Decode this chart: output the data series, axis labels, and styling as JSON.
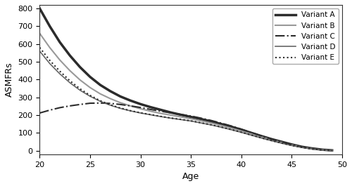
{
  "title": "",
  "xlabel": "Age",
  "ylabel": "ASMFRs",
  "xlim": [
    20,
    49
  ],
  "ylim": [
    -20,
    820
  ],
  "yticks": [
    0,
    100,
    200,
    300,
    400,
    500,
    600,
    700,
    800
  ],
  "xticks": [
    20,
    25,
    30,
    35,
    40,
    45,
    50
  ],
  "ages": [
    20,
    21,
    22,
    23,
    24,
    25,
    26,
    27,
    28,
    29,
    30,
    31,
    32,
    33,
    34,
    35,
    36,
    37,
    38,
    39,
    40,
    41,
    42,
    43,
    44,
    45,
    46,
    47,
    48,
    49
  ],
  "variant_A": [
    800,
    700,
    610,
    535,
    470,
    415,
    370,
    335,
    305,
    282,
    262,
    245,
    230,
    215,
    202,
    190,
    178,
    165,
    150,
    135,
    118,
    100,
    82,
    65,
    50,
    35,
    22,
    13,
    6,
    2
  ],
  "variant_B": [
    660,
    580,
    510,
    450,
    398,
    355,
    320,
    293,
    270,
    252,
    236,
    222,
    210,
    200,
    190,
    180,
    168,
    156,
    142,
    127,
    111,
    94,
    77,
    61,
    46,
    32,
    20,
    11,
    5,
    1
  ],
  "variant_C": [
    212,
    228,
    242,
    252,
    260,
    267,
    268,
    266,
    260,
    252,
    243,
    232,
    222,
    213,
    204,
    195,
    183,
    170,
    155,
    139,
    121,
    102,
    83,
    65,
    49,
    34,
    21,
    12,
    5,
    1
  ],
  "variant_D": [
    560,
    490,
    432,
    382,
    340,
    306,
    278,
    256,
    238,
    224,
    212,
    202,
    192,
    183,
    175,
    167,
    156,
    145,
    132,
    118,
    103,
    87,
    71,
    56,
    42,
    29,
    18,
    10,
    4,
    1
  ],
  "variant_E": [
    580,
    508,
    447,
    393,
    348,
    311,
    281,
    258,
    240,
    225,
    213,
    203,
    193,
    184,
    176,
    168,
    157,
    146,
    133,
    119,
    104,
    88,
    72,
    57,
    43,
    30,
    19,
    10,
    4,
    1
  ],
  "line_styles": [
    "-",
    "-",
    "-.",
    "-",
    ":"
  ],
  "line_colors": [
    "#2b2b2b",
    "#999999",
    "#2b2b2b",
    "#666666",
    "#2b2b2b"
  ],
  "line_widths": [
    2.5,
    1.5,
    1.5,
    1.2,
    1.5
  ],
  "labels": [
    "Variant A",
    "Variant B",
    "Variant C",
    "Variant D",
    "Variant E"
  ],
  "legend_loc": "upper right",
  "background_color": "#ffffff",
  "figure_size": [
    5.0,
    2.65
  ],
  "dpi": 100
}
